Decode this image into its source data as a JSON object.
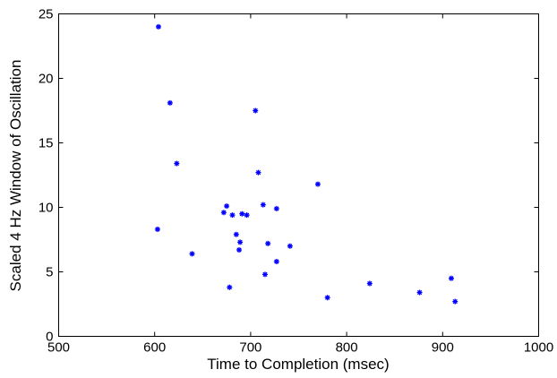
{
  "chart_data": {
    "type": "scatter",
    "title": "",
    "xlabel": "Time to Completion (msec)",
    "ylabel": "Scaled 4 Hz Window of Oscillation",
    "xlim": [
      500,
      1000
    ],
    "ylim": [
      0,
      25
    ],
    "xticks": [
      500,
      600,
      700,
      800,
      900,
      1000
    ],
    "yticks": [
      0,
      5,
      10,
      15,
      20,
      25
    ],
    "grid": false,
    "legend": "none",
    "marker": "asterisk",
    "marker_color": "#0000ff",
    "series": [
      {
        "points": [
          {
            "x": 604,
            "y": 24.0
          },
          {
            "x": 616,
            "y": 18.1
          },
          {
            "x": 623,
            "y": 13.4
          },
          {
            "x": 603,
            "y": 8.3
          },
          {
            "x": 639,
            "y": 6.4
          },
          {
            "x": 672,
            "y": 9.6
          },
          {
            "x": 675,
            "y": 10.1
          },
          {
            "x": 681,
            "y": 9.4
          },
          {
            "x": 685,
            "y": 7.9
          },
          {
            "x": 688,
            "y": 6.7
          },
          {
            "x": 689,
            "y": 7.3
          },
          {
            "x": 691,
            "y": 9.5
          },
          {
            "x": 696,
            "y": 9.4
          },
          {
            "x": 678,
            "y": 3.8
          },
          {
            "x": 705,
            "y": 17.5
          },
          {
            "x": 708,
            "y": 12.7
          },
          {
            "x": 713,
            "y": 10.2
          },
          {
            "x": 715,
            "y": 4.8
          },
          {
            "x": 718,
            "y": 7.2
          },
          {
            "x": 727,
            "y": 9.9
          },
          {
            "x": 727,
            "y": 5.8
          },
          {
            "x": 741,
            "y": 7.0
          },
          {
            "x": 770,
            "y": 11.8
          },
          {
            "x": 780,
            "y": 3.0
          },
          {
            "x": 824,
            "y": 4.1
          },
          {
            "x": 876,
            "y": 3.4
          },
          {
            "x": 909,
            "y": 4.5
          },
          {
            "x": 913,
            "y": 2.7
          }
        ]
      }
    ]
  }
}
